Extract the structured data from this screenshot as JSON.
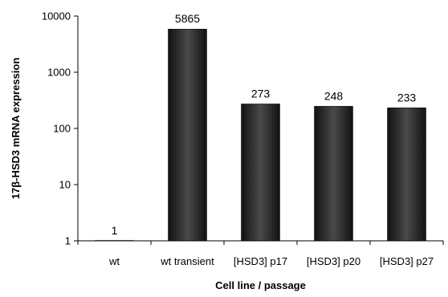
{
  "chart_data": {
    "type": "bar",
    "categories": [
      "wt",
      "wt transient",
      "[HSD3] p17",
      "[HSD3] p20",
      "[HSD3] p27"
    ],
    "values": [
      1,
      5865,
      273,
      248,
      233
    ],
    "data_labels": [
      "1",
      "5865",
      "273",
      "248",
      "233"
    ],
    "xlabel": "Cell line / passage",
    "ylabel": "17β-HSD3 mRNA expression",
    "yscale": "log",
    "ylim": [
      1,
      10000
    ],
    "yticks": [
      1,
      10,
      100,
      1000,
      10000
    ],
    "ytick_labels": [
      "1",
      "10",
      "100",
      "1000",
      "10000"
    ],
    "grid": false,
    "legend": "none",
    "bar_color": "#2b2b2b"
  }
}
